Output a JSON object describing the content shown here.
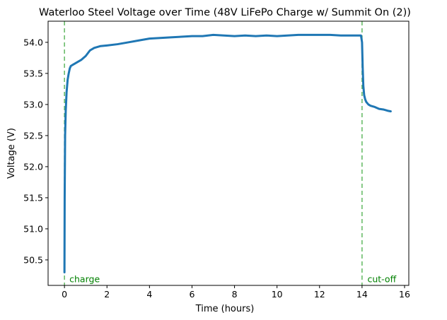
{
  "chart_data": {
    "type": "line",
    "title": "Waterloo Steel Voltage over Time (48V LiFePo Charge w/ Summit On (2))",
    "xlabel": "Time (hours)",
    "ylabel": "Voltage (V)",
    "xlim": [
      -0.77,
      16.2
    ],
    "ylim": [
      50.09,
      54.34
    ],
    "xticks": [
      0,
      2,
      4,
      6,
      8,
      10,
      12,
      14,
      16
    ],
    "yticks": [
      50.5,
      51.0,
      51.5,
      52.0,
      52.5,
      53.0,
      53.5,
      54.0
    ],
    "xtick_labels": [
      "0",
      "2",
      "4",
      "6",
      "8",
      "10",
      "12",
      "14",
      "16"
    ],
    "ytick_labels": [
      "50.5",
      "51.0",
      "51.5",
      "52.0",
      "52.5",
      "53.0",
      "53.5",
      "54.0"
    ],
    "grid": false,
    "series": [
      {
        "name": "",
        "color": "#1f77b4",
        "x": [
          0,
          0.01,
          0.03,
          0.06,
          0.1,
          0.15,
          0.2,
          0.25,
          0.3,
          0.4,
          0.5,
          0.6,
          0.8,
          1.0,
          1.2,
          1.4,
          1.7,
          2.0,
          2.5,
          3.0,
          3.5,
          4.0,
          4.5,
          5.0,
          5.5,
          6.0,
          6.5,
          7.0,
          7.5,
          8.0,
          8.5,
          9.0,
          9.5,
          10.0,
          10.5,
          11.0,
          11.5,
          12.0,
          12.5,
          13.0,
          13.5,
          13.95,
          14.0,
          14.03,
          14.06,
          14.1,
          14.15,
          14.2,
          14.3,
          14.4,
          14.6,
          14.8,
          15.0,
          15.2,
          15.35
        ],
        "values": [
          50.3,
          51.5,
          52.5,
          52.9,
          53.2,
          53.4,
          53.5,
          53.58,
          53.62,
          53.64,
          53.66,
          53.68,
          53.72,
          53.78,
          53.87,
          53.91,
          53.94,
          53.95,
          53.97,
          54.0,
          54.03,
          54.06,
          54.07,
          54.08,
          54.09,
          54.1,
          54.1,
          54.12,
          54.11,
          54.1,
          54.11,
          54.1,
          54.11,
          54.1,
          54.11,
          54.12,
          54.12,
          54.12,
          54.12,
          54.11,
          54.11,
          54.11,
          54.0,
          53.6,
          53.3,
          53.15,
          53.08,
          53.04,
          53.0,
          52.98,
          52.96,
          52.93,
          52.92,
          52.9,
          52.89
        ]
      }
    ],
    "annotations": [
      {
        "text": "charge",
        "x": 0.1,
        "y": 50.12
      },
      {
        "text": "cut-off",
        "x": 14.12,
        "y": 50.12
      }
    ],
    "vlines": [
      {
        "x": 0,
        "color": "#2ca02c",
        "style": "dashed"
      },
      {
        "x": 14,
        "color": "#2ca02c",
        "style": "dashed"
      }
    ]
  }
}
